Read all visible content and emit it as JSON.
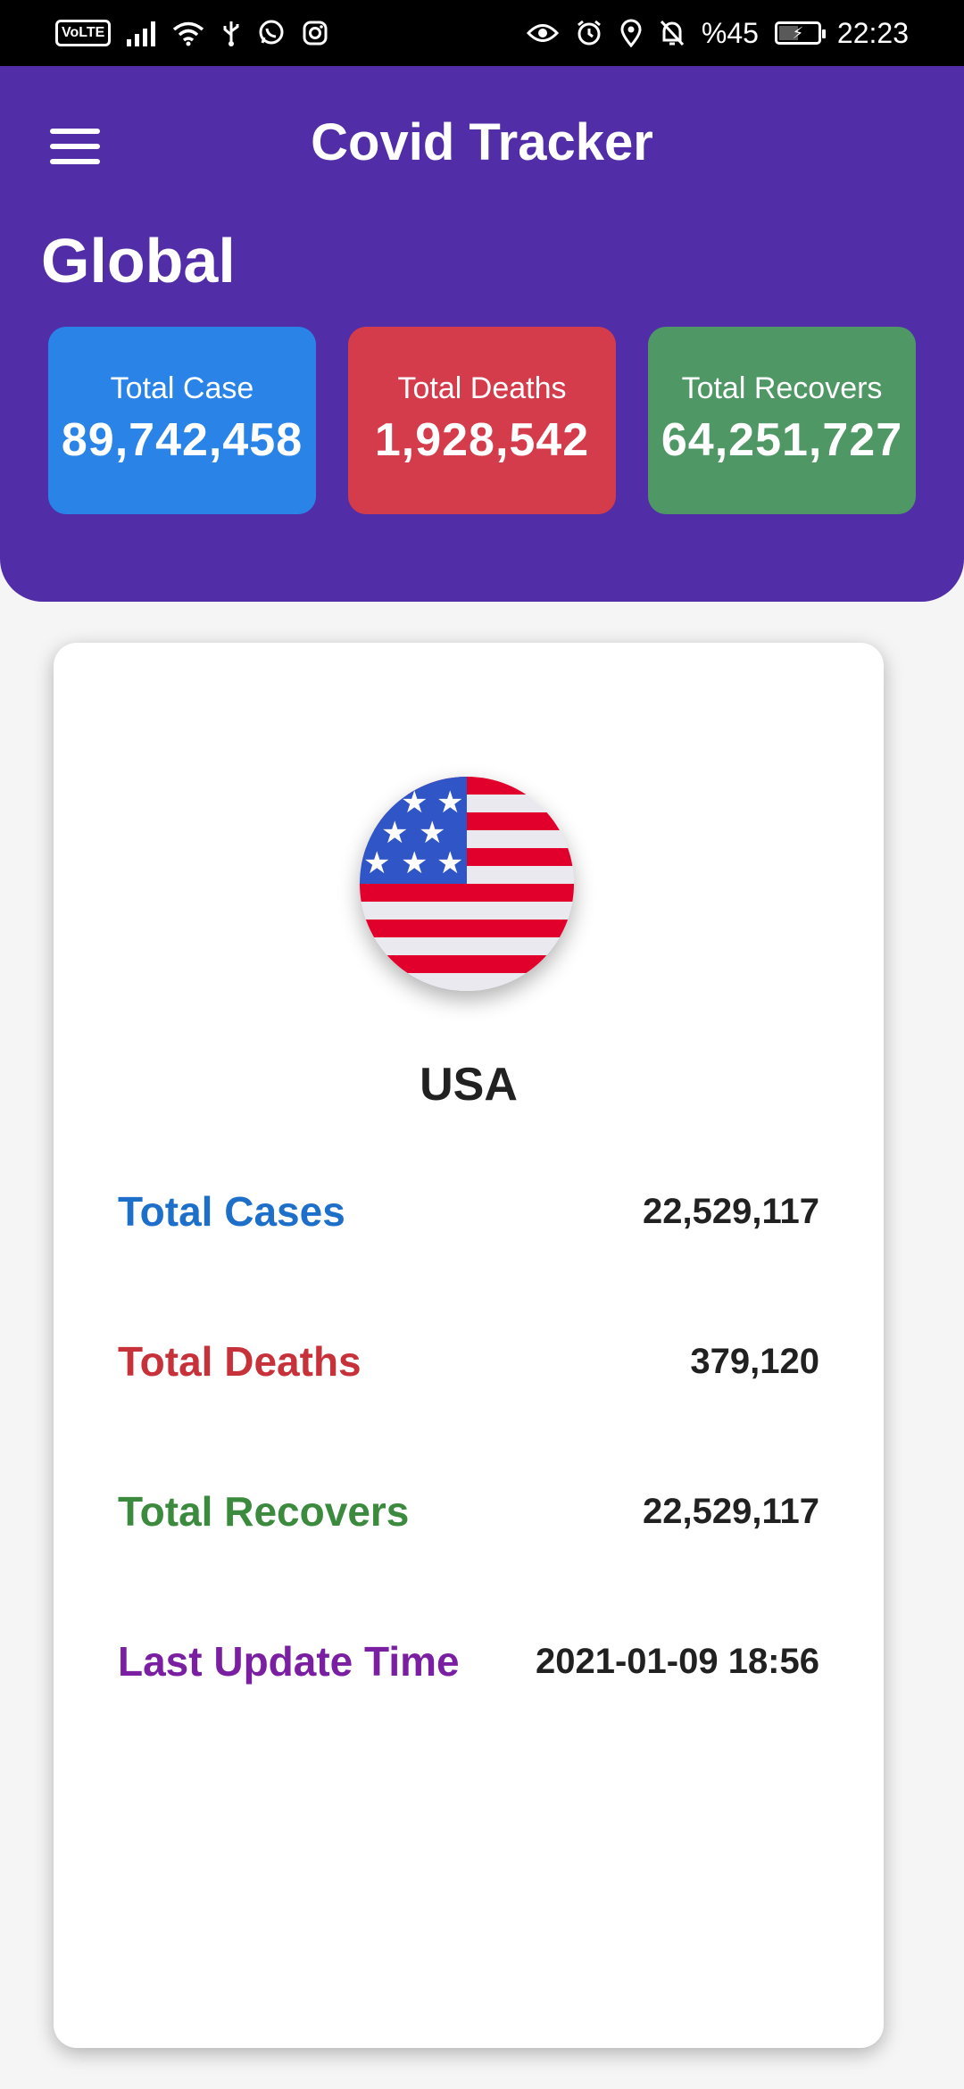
{
  "status_bar": {
    "volte": "VoLTE",
    "battery_percent": "%45",
    "time": "22:23",
    "icons": [
      "signal-icon",
      "wifi-icon",
      "usb-icon",
      "whatsapp-icon",
      "instagram-icon",
      "eye-icon",
      "alarm-icon",
      "location-icon",
      "bell-off-icon",
      "battery-icon"
    ]
  },
  "header": {
    "title": "Covid Tracker",
    "section_title": "Global",
    "color": "#512da8"
  },
  "global_stats": [
    {
      "label": "Total Case",
      "value": "89,742,458",
      "color": "#2a84e8"
    },
    {
      "label": "Total Deaths",
      "value": "1,928,542",
      "color": "#d53c4b"
    },
    {
      "label": "Total Recovers",
      "value": "64,251,727",
      "color": "#4f9865"
    }
  ],
  "country": {
    "name": "USA",
    "flag_icon": "usa-flag-icon",
    "rows": [
      {
        "label": "Total Cases",
        "value": "22,529,117",
        "color": "#1e6fc9"
      },
      {
        "label": "Total Deaths",
        "value": "379,120",
        "color": "#c7323a"
      },
      {
        "label": "Total Recovers",
        "value": "22,529,117",
        "color": "#3b8a3e"
      },
      {
        "label": "Last Update Time",
        "value": "2021-01-09 18:56",
        "color": "#7b1fa2"
      }
    ]
  }
}
